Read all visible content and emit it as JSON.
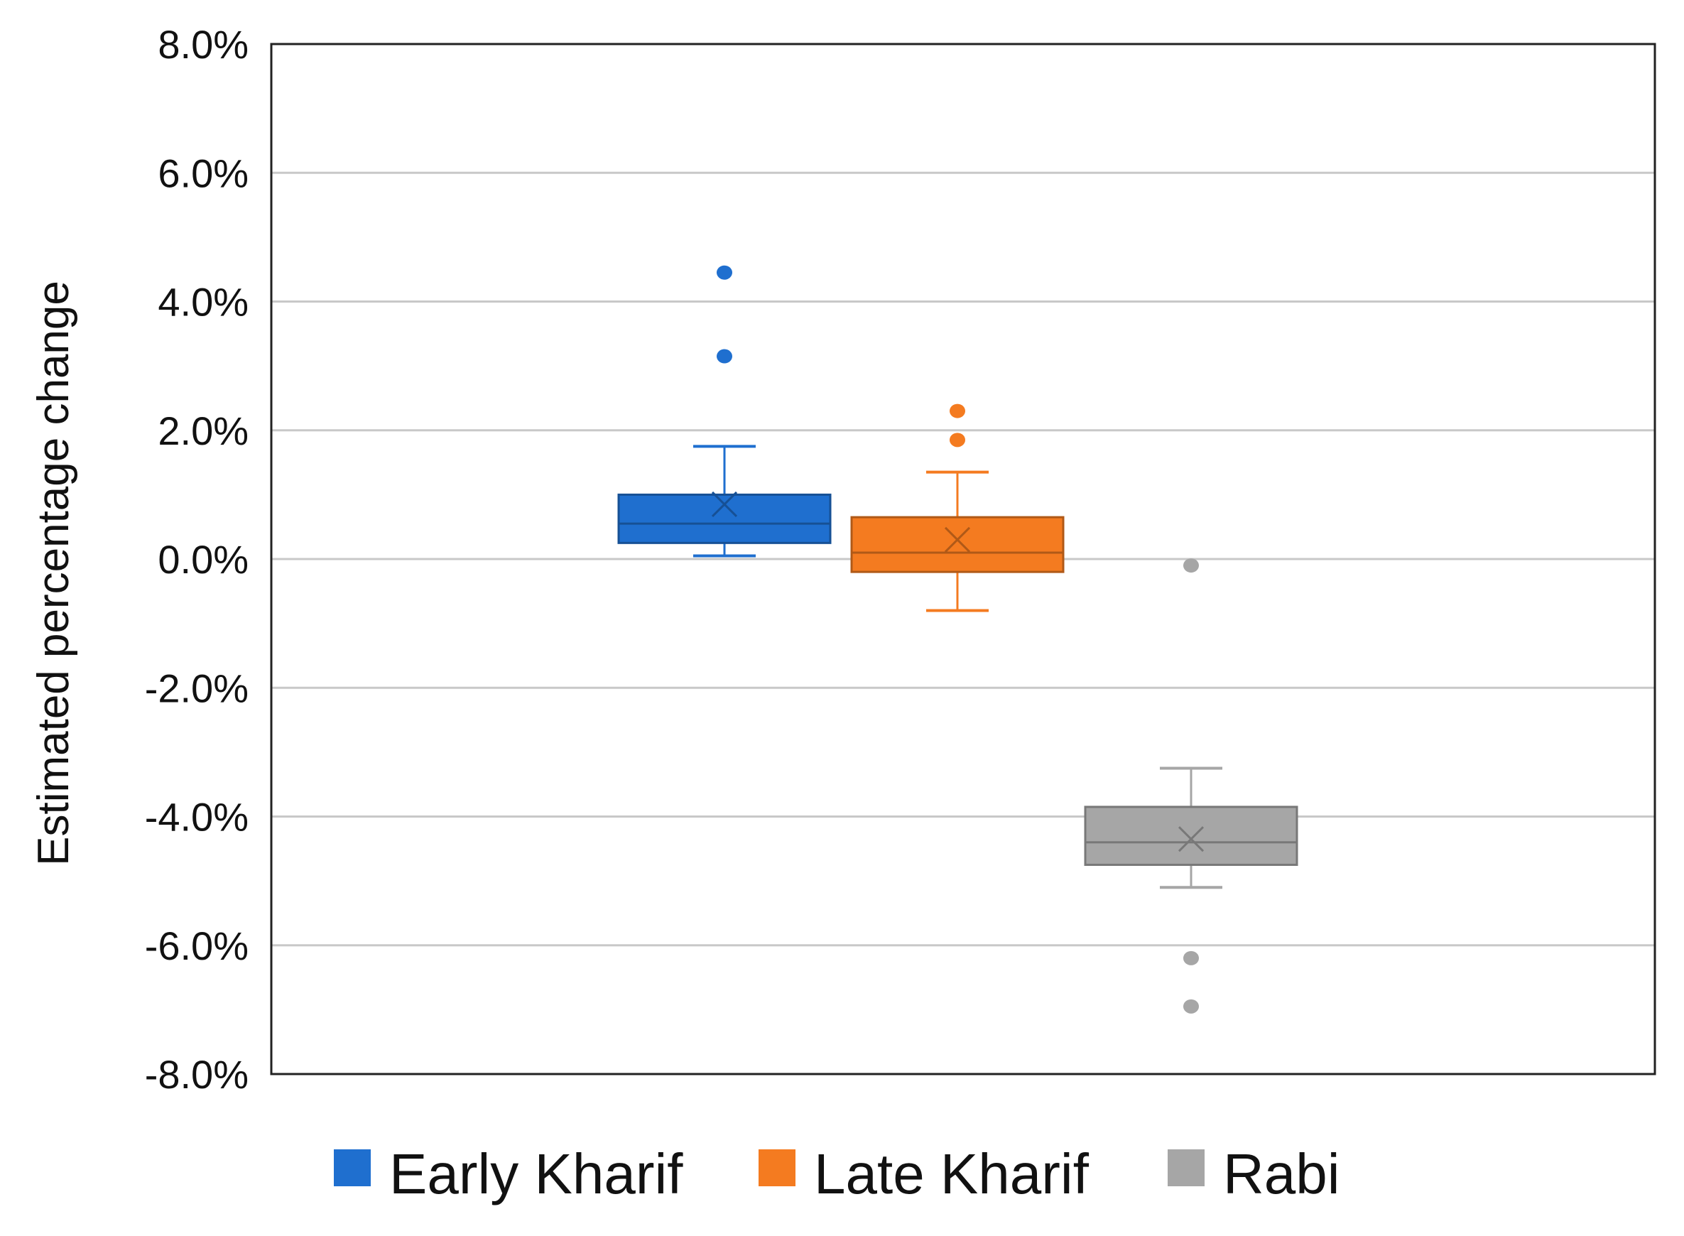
{
  "chart_data": {
    "type": "box",
    "ylabel": "Estimated percentage change",
    "ylim": [
      -8.0,
      8.0
    ],
    "yticks": [
      8.0,
      6.0,
      4.0,
      2.0,
      0.0,
      -2.0,
      -4.0,
      -6.0,
      -8.0
    ],
    "ytick_labels": [
      "8.0%",
      "6.0%",
      "4.0%",
      "2.0%",
      "0.0%",
      "-2.0%",
      "-4.0%",
      "-6.0%",
      "-8.0%"
    ],
    "grid": true,
    "legend_position": "bottom",
    "series": [
      {
        "name": "Early Kharif",
        "color": "#1f6fcf",
        "whisker_low": 0.05,
        "q1": 0.25,
        "median": 0.55,
        "q3": 1.0,
        "whisker_high": 1.75,
        "mean": 0.85,
        "outliers": [
          4.45,
          3.15
        ]
      },
      {
        "name": "Late Kharif",
        "color": "#f47b20",
        "whisker_low": -0.8,
        "q1": -0.2,
        "median": 0.1,
        "q3": 0.65,
        "whisker_high": 1.35,
        "mean": 0.3,
        "outliers": [
          2.3,
          1.85
        ]
      },
      {
        "name": "Rabi",
        "color": "#a6a6a6",
        "whisker_low": -5.1,
        "q1": -4.75,
        "median": -4.4,
        "q3": -3.85,
        "whisker_high": -3.25,
        "mean": -4.35,
        "outliers": [
          -0.1,
          -6.2,
          -6.95
        ]
      }
    ]
  }
}
